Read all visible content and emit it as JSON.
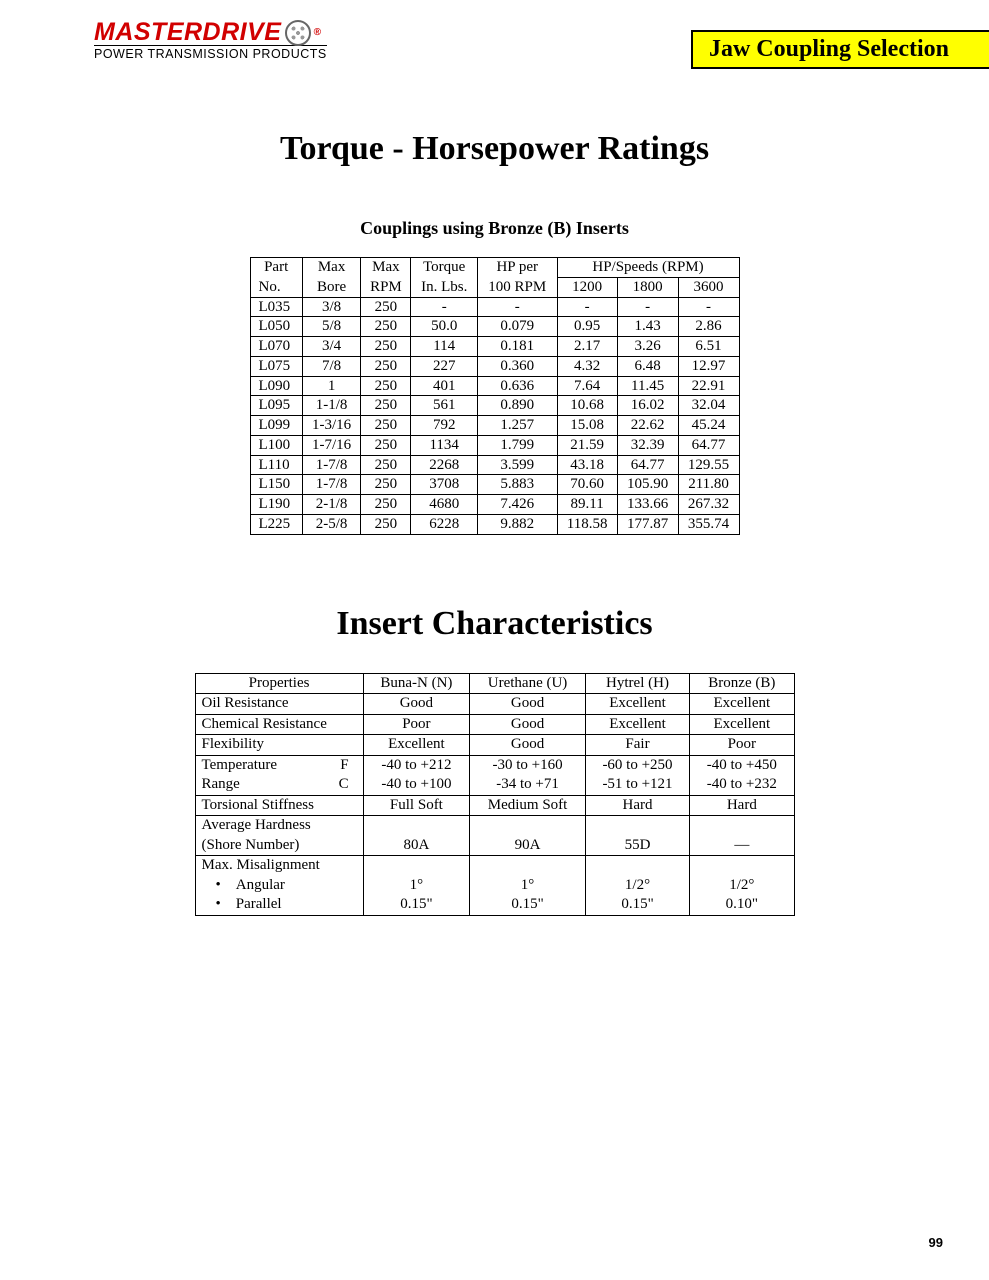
{
  "logo": {
    "main": "MASTERDRIVE",
    "sub": "POWER TRANSMISSION PRODUCTS",
    "reg": "®"
  },
  "banner": "Jaw Coupling Selection",
  "title1": "Torque - Horsepower Ratings",
  "subtitle1": "Couplings using Bronze (B) Inserts",
  "torque_table": {
    "header_top": [
      "Part",
      "Max",
      "Max",
      "Torque",
      "HP per",
      "HP/Speeds (RPM)"
    ],
    "header_bot": [
      "No.",
      "Bore",
      "RPM",
      "In. Lbs.",
      "100 RPM",
      "1200",
      "1800",
      "3600"
    ],
    "rows": [
      [
        "L035",
        "3/8",
        "250",
        "-",
        "-",
        "-",
        "-",
        "-"
      ],
      [
        "L050",
        "5/8",
        "250",
        "50.0",
        "0.079",
        "0.95",
        "1.43",
        "2.86"
      ],
      [
        "L070",
        "3/4",
        "250",
        "114",
        "0.181",
        "2.17",
        "3.26",
        "6.51"
      ],
      [
        "L075",
        "7/8",
        "250",
        "227",
        "0.360",
        "4.32",
        "6.48",
        "12.97"
      ],
      [
        "L090",
        "1",
        "250",
        "401",
        "0.636",
        "7.64",
        "11.45",
        "22.91"
      ],
      [
        "L095",
        "1-1/8",
        "250",
        "561",
        "0.890",
        "10.68",
        "16.02",
        "32.04"
      ],
      [
        "L099",
        "1-3/16",
        "250",
        "792",
        "1.257",
        "15.08",
        "22.62",
        "45.24"
      ],
      [
        "L100",
        "1-7/16",
        "250",
        "1134",
        "1.799",
        "21.59",
        "32.39",
        "64.77"
      ],
      [
        "L110",
        "1-7/8",
        "250",
        "2268",
        "3.599",
        "43.18",
        "64.77",
        "129.55"
      ],
      [
        "L150",
        "1-7/8",
        "250",
        "3708",
        "5.883",
        "70.60",
        "105.90",
        "211.80"
      ],
      [
        "L190",
        "2-1/8",
        "250",
        "4680",
        "7.426",
        "89.11",
        "133.66",
        "267.32"
      ],
      [
        "L225",
        "2-5/8",
        "250",
        "6228",
        "9.882",
        "118.58",
        "177.87",
        "355.74"
      ]
    ]
  },
  "title2": "Insert Characteristics",
  "insert_table": {
    "header": [
      "Properties",
      "Buna-N (N)",
      "Urethane (U)",
      "Hytrel (H)",
      "Bronze (B)"
    ],
    "oil": [
      "Oil Resistance",
      "Good",
      "Good",
      "Excellent",
      "Excellent"
    ],
    "chem": [
      "Chemical Resistance",
      "Poor",
      "Good",
      "Excellent",
      "Excellent"
    ],
    "flex": [
      "Flexibility",
      "Excellent",
      "Good",
      "Fair",
      "Poor"
    ],
    "temp_label": "Temperature",
    "temp_unit_f": "F",
    "temp_f": [
      "-40 to +212",
      "-30 to +160",
      "-60 to +250",
      "-40 to +450"
    ],
    "range_label": "Range",
    "temp_unit_c": "C",
    "temp_c": [
      "-40 to +100",
      "-34 to +71",
      "-51 to +121",
      "-40 to +232"
    ],
    "tors": [
      "Torsional Stiffness",
      "Full Soft",
      "Medium Soft",
      "Hard",
      "Hard"
    ],
    "hard_label1": "Average Hardness",
    "hard_label2": "(Shore Number)",
    "hard": [
      "80A",
      "90A",
      "55D",
      "—"
    ],
    "mis_label": "Max. Misalignment",
    "ang_label": "Angular",
    "ang": [
      "1°",
      "1°",
      "1/2°",
      "1/2°"
    ],
    "par_label": "Parallel",
    "par": [
      "0.15\"",
      "0.15\"",
      "0.15\"",
      "0.10\""
    ]
  },
  "page": "99"
}
